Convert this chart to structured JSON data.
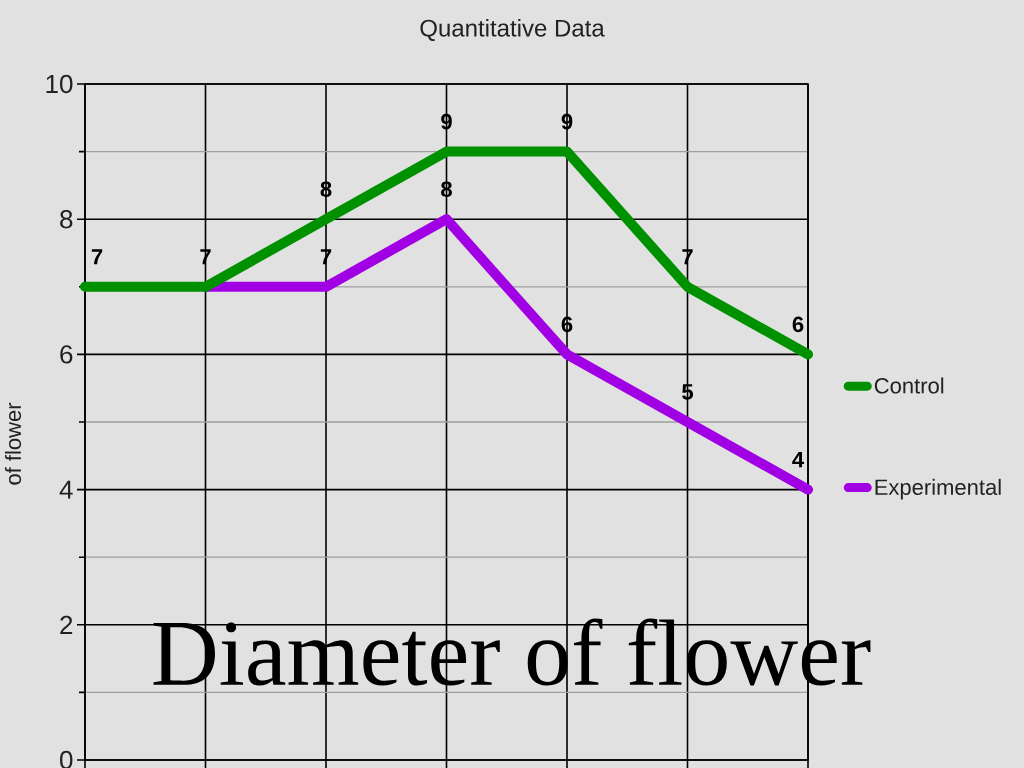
{
  "chart_data": {
    "type": "line",
    "title": "Quantitative Data",
    "ylabel": "of flower",
    "annotations": [
      "Diameter of flower"
    ],
    "categories": [
      null,
      null,
      null,
      null,
      null,
      null,
      null
    ],
    "series": [
      {
        "name": "Control",
        "color": "#009100",
        "values": [
          7,
          7,
          8,
          9,
          9,
          7,
          6
        ],
        "value_labels": [
          "7",
          "7",
          "8",
          "9",
          "9",
          "7",
          "6"
        ]
      },
      {
        "name": "Experimental",
        "color": "#a200e4",
        "values": [
          null,
          7,
          7,
          8,
          6,
          5,
          4
        ],
        "value_labels": [
          null,
          null,
          "7",
          "8",
          "6",
          "5",
          "4"
        ]
      }
    ],
    "ylim": [
      0,
      10
    ],
    "yticks": [
      0,
      {
        "value": 1,
        "label": null
      },
      2,
      {
        "value": 3,
        "label": null
      },
      4,
      {
        "value": 5,
        "label": null
      },
      6,
      {
        "value": 7,
        "label": null
      },
      8,
      {
        "value": 9,
        "label": null
      },
      10
    ],
    "grid": true,
    "legend": "right",
    "tick_labels": "y",
    "marker": "none"
  }
}
